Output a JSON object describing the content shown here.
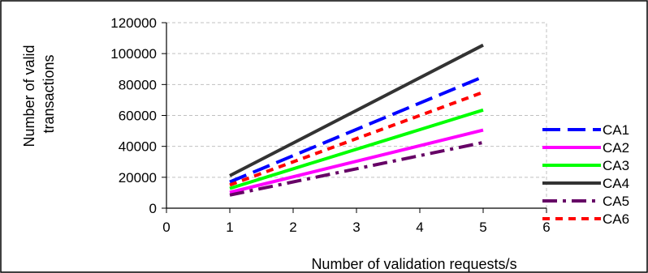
{
  "chart_data": {
    "type": "line",
    "title": "",
    "xlabel": "Number of validation requests/s",
    "ylabel": [
      "Number of valid",
      "transactions"
    ],
    "xlim": [
      0,
      6
    ],
    "ylim": [
      0,
      120000
    ],
    "x_ticks": [
      "0",
      "1",
      "2",
      "3",
      "4",
      "5",
      "6"
    ],
    "y_ticks": [
      "0",
      "20000",
      "40000",
      "60000",
      "80000",
      "100000",
      "120000"
    ],
    "grid": "horizontal dashed",
    "legend_position": "right",
    "x": [
      1,
      5
    ],
    "series": [
      {
        "name": "CA1",
        "values": [
          17000,
          85000
        ],
        "color": "#0000ff",
        "dash": "long-dash"
      },
      {
        "name": "CA2",
        "values": [
          10200,
          50500
        ],
        "color": "#ff00ff",
        "dash": "solid"
      },
      {
        "name": "CA3",
        "values": [
          12800,
          63500
        ],
        "color": "#00ff00",
        "dash": "solid"
      },
      {
        "name": "CA4",
        "values": [
          21000,
          105500
        ],
        "color": "#333333",
        "dash": "solid"
      },
      {
        "name": "CA5",
        "values": [
          8500,
          42500
        ],
        "color": "#660066",
        "dash": "dash-dot"
      },
      {
        "name": "CA6",
        "values": [
          15000,
          75000
        ],
        "color": "#ff0000",
        "dash": "short-dash"
      }
    ]
  }
}
